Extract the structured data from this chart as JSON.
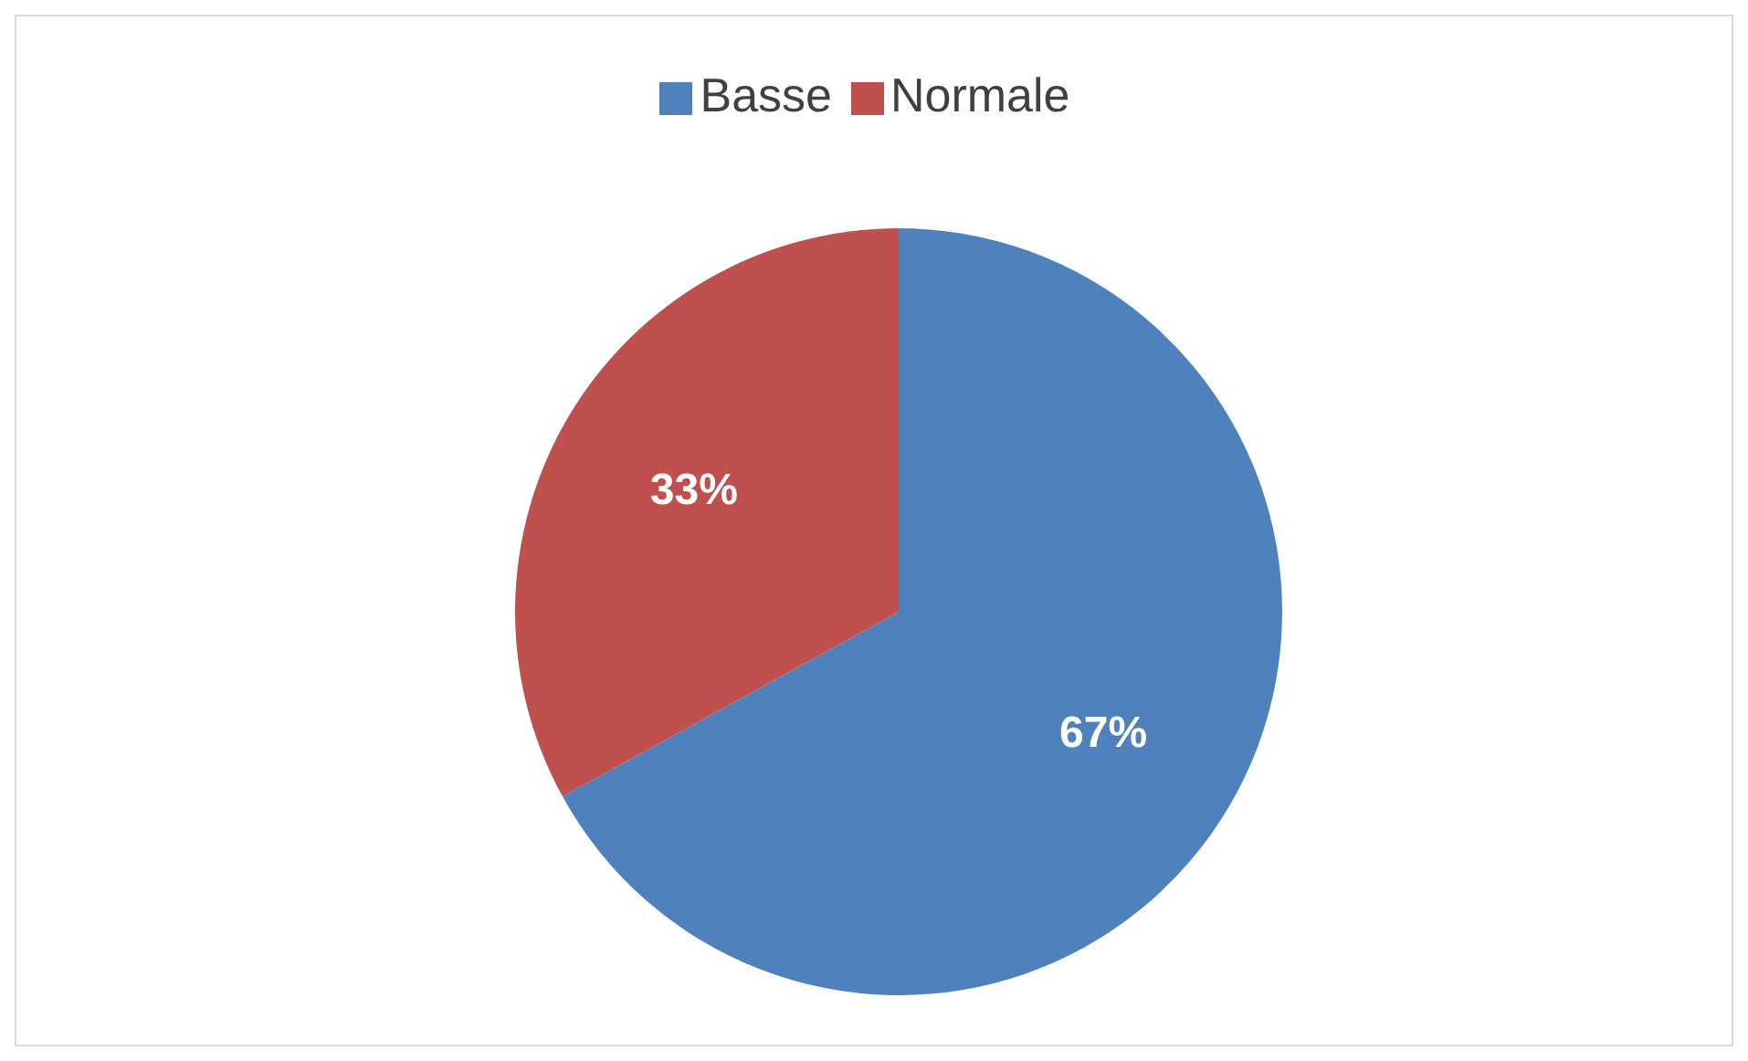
{
  "chart_data": {
    "type": "pie",
    "categories": [
      "Basse",
      "Normale"
    ],
    "values": [
      67,
      33
    ],
    "colors": [
      "#4f81bd",
      "#c0504d"
    ],
    "value_labels": [
      "67%",
      "33%"
    ],
    "legend": "top"
  }
}
